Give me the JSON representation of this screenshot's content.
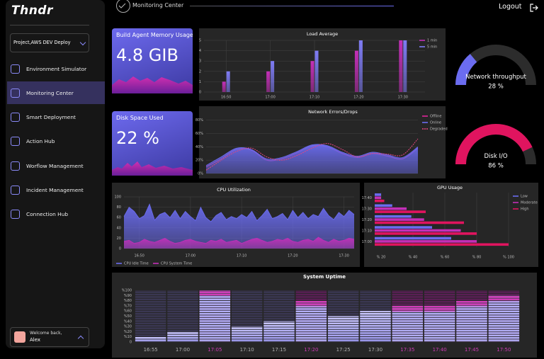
{
  "sidebar": {
    "logo": "Thndr",
    "project": "Project,AWS DEV Deploy",
    "nav": [
      "Environment Simulator",
      "Monitoring Center",
      "Smart Deployment",
      "Action Hub",
      "Worflow Management",
      "Incident Management",
      "Connection Hub"
    ],
    "welcome": "Welcome back,",
    "user": "Alex"
  },
  "header": {
    "title": "Monitoring Center",
    "logout": "Logout"
  },
  "cards": [
    {
      "title": "Build Agent Memory Usage",
      "value": "4.8 GIB"
    },
    {
      "title": "Disk Space Used",
      "value": "22 %"
    }
  ],
  "chart_data": [
    {
      "type": "bar",
      "title": "Load Average",
      "categories": [
        "16:50",
        "17:00",
        "17:10",
        "17:20",
        "17:30"
      ],
      "series": [
        {
          "name": "1 min",
          "color": "#c42fb8",
          "values": [
            1,
            2,
            3,
            4,
            5
          ]
        },
        {
          "name": "5 min",
          "color": "#7f7cf5",
          "values": [
            2,
            3,
            4,
            5,
            5
          ]
        }
      ],
      "ylim": [
        0,
        5
      ],
      "yticks": [
        0,
        1,
        2,
        3,
        4,
        5
      ],
      "grid": true,
      "legend": "upper right"
    },
    {
      "type": "area",
      "title": "Network Errors/Drops",
      "smooth": true,
      "categories": [
        null,
        null,
        null,
        null,
        null,
        null,
        null,
        null,
        null,
        null,
        null,
        null,
        null,
        null,
        null
      ],
      "series": [
        {
          "name": "Offline",
          "color": "#e0249a",
          "fill": false,
          "values": [
            10,
            22,
            36,
            35,
            20,
            22,
            31,
            41,
            40,
            30,
            24,
            30,
            26,
            22,
            38
          ]
        },
        {
          "name": "Online",
          "color": "#6b6cf0",
          "fill": true,
          "values": [
            12,
            25,
            38,
            36,
            22,
            24,
            33,
            43,
            42,
            32,
            26,
            32,
            28,
            24,
            40
          ]
        },
        {
          "name": "Degraded",
          "color": "#e8457f",
          "fill": false,
          "dash": true,
          "values": [
            5,
            20,
            33,
            38,
            25,
            20,
            27,
            38,
            45,
            36,
            25,
            30,
            29,
            28,
            52
          ]
        }
      ],
      "ylim": [
        0,
        85
      ],
      "yticks": [
        {
          "value": 0,
          "label": "0%"
        },
        {
          "value": 20,
          "label": "20%"
        },
        {
          "value": 40,
          "label": "40%"
        },
        {
          "value": 60,
          "label": "60%"
        },
        {
          "value": 80,
          "label": "80%"
        }
      ],
      "grid": true,
      "legend": "right"
    },
    {
      "type": "gauge",
      "title": "Network throughput",
      "values": [
        28
      ],
      "value_labels": [
        "28 %"
      ],
      "ylim": [
        0,
        100
      ],
      "color": "#6b6cf0"
    },
    {
      "type": "gauge",
      "title": "Disk I/O",
      "values": [
        86
      ],
      "value_labels": [
        "86 %"
      ],
      "ylim": [
        0,
        100
      ],
      "color": "#e0145f"
    },
    {
      "type": "area",
      "title": "CPU Utilization",
      "smooth": false,
      "categories": [
        null,
        null,
        null,
        "16:50",
        null,
        null,
        null,
        null,
        null,
        null,
        null,
        null,
        null,
        "17:00",
        null,
        null,
        null,
        null,
        null,
        null,
        null,
        null,
        null,
        "17:10",
        null,
        null,
        null,
        null,
        null,
        null,
        null,
        null,
        null,
        "17:20",
        null,
        null,
        null,
        null,
        null,
        null,
        null,
        null,
        null,
        "17:30",
        null,
        null
      ],
      "series": [
        {
          "name": "CPU Idle Time",
          "color": "#6b6cf0",
          "fill": true,
          "values": [
            62,
            80,
            72,
            58,
            64,
            86,
            55,
            66,
            70,
            60,
            74,
            58,
            72,
            62,
            54,
            80,
            60,
            52,
            64,
            70,
            56,
            62,
            58,
            66,
            60,
            72,
            54,
            64,
            76,
            58,
            62,
            68,
            56,
            74,
            60,
            70,
            58,
            66,
            62,
            78,
            64,
            56,
            70,
            62,
            74,
            66
          ]
        },
        {
          "name": "CPU System Time",
          "color": "#c42fb8",
          "fill": true,
          "values": [
            14,
            16,
            10,
            12,
            18,
            14,
            12,
            16,
            20,
            14,
            10,
            12,
            16,
            18,
            14,
            12,
            10,
            16,
            14,
            18,
            12,
            14,
            16,
            10,
            14,
            18,
            20,
            16,
            12,
            14,
            18,
            16,
            20,
            14,
            12,
            16,
            18,
            14,
            22,
            16,
            12,
            18,
            14,
            16,
            20,
            18
          ]
        }
      ],
      "ylim": [
        0,
        100
      ],
      "yticks": [
        0,
        20,
        40,
        60,
        80,
        100
      ],
      "grid": true,
      "legend": "bottom"
    },
    {
      "type": "hbar",
      "title": "GPU Usage",
      "categories": [
        "17:00",
        "17:10",
        "17:20",
        "17:30",
        "17:40"
      ],
      "series": [
        {
          "name": "Low",
          "color": "#6b6cf0",
          "values": [
            64,
            52,
            39,
            27,
            20
          ]
        },
        {
          "name": "Moderate",
          "color": "#c42fb8",
          "values": [
            80,
            70,
            47,
            36,
            20
          ]
        },
        {
          "name": "High",
          "color": "#e0145f",
          "values": [
            100,
            80,
            72,
            48,
            22
          ]
        }
      ],
      "xlim": [
        16,
        100
      ],
      "xticks": [
        {
          "value": 20,
          "label": "% 20"
        },
        {
          "value": 40,
          "label": "% 40"
        },
        {
          "value": 60,
          "label": "% 60"
        },
        {
          "value": 80,
          "label": "% 80"
        },
        {
          "value": 100,
          "label": "% 100"
        }
      ],
      "grid": true,
      "legend": "upper right"
    },
    {
      "type": "bar",
      "title": "System Uptime",
      "segmented": true,
      "categories": [
        "16:55",
        "17:00",
        "17:05",
        "17:10",
        "17:15",
        "17:20",
        "17:25",
        "17:30",
        "17:35",
        "17:40",
        "17:45",
        "17:50"
      ],
      "values": [
        10,
        20,
        100,
        30,
        40,
        80,
        50,
        60,
        70,
        70,
        80,
        90
      ],
      "label_colors": [
        "#b0b0b0",
        "#b0b0b0",
        "#d03cb8",
        "#b0b0b0",
        "#b0b0b0",
        "#d03cb8",
        "#b0b0b0",
        "#b0b0b0",
        "#d03cb8",
        "#d03cb8",
        "#d03cb8",
        "#d03cb8"
      ],
      "ylim": [
        0,
        100
      ],
      "yticks": [
        0,
        {
          "value": 10,
          "label": "%10"
        },
        {
          "value": 20,
          "label": "%20"
        },
        {
          "value": 30,
          "label": "%30"
        },
        {
          "value": 40,
          "label": "%40"
        },
        {
          "value": 50,
          "label": "%50"
        },
        {
          "value": 60,
          "label": "%60"
        },
        {
          "value": 70,
          "label": "%70"
        },
        {
          "value": 80,
          "label": "%80"
        },
        {
          "value": 90,
          "label": "%90"
        },
        {
          "value": 100,
          "label": "%100"
        }
      ],
      "grid": false
    }
  ]
}
